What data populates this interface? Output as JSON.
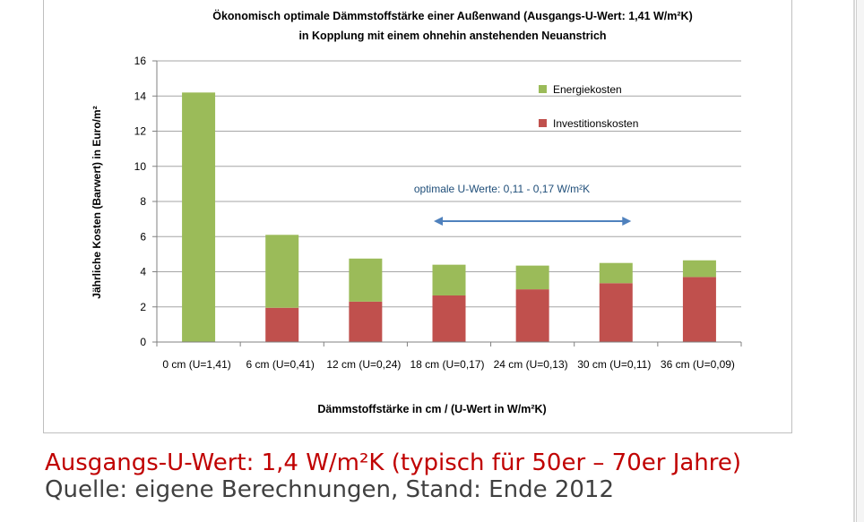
{
  "chart_data": {
    "type": "bar",
    "stacked": true,
    "title": "Ökonomisch optimale Dämmstoffstärke  einer Außenwand (Ausgangs-U-Wert: 1,41 W/m²K)",
    "subtitle": "in Kopplung mit einem ohnehin anstehenden Neuanstrich",
    "xlabel": "Dämmstoffstärke in cm / (U-Wert in W/m²K)",
    "ylabel": "Jährliche Kosten (Barwert) in Euro/m²",
    "ylim": [
      0,
      16
    ],
    "yticks": [
      0,
      2,
      4,
      6,
      8,
      10,
      12,
      14,
      16
    ],
    "grid": true,
    "legend_position": "top-right",
    "categories": [
      "0 cm (U=1,41)",
      "6 cm (U=0,41)",
      "12 cm (U=0,24)",
      "18 cm (U=0,17)",
      "24 cm (U=0,13)",
      "30 cm (U=0,11)",
      "36 cm (U=0,09)"
    ],
    "series": [
      {
        "name": "Investitionskosten",
        "color": "#c0504d",
        "values": [
          0,
          1.95,
          2.3,
          2.65,
          3.0,
          3.35,
          3.7
        ]
      },
      {
        "name": "Energiekosten",
        "color": "#9bbb59",
        "values": [
          14.2,
          4.15,
          2.45,
          1.75,
          1.35,
          1.15,
          0.95
        ]
      }
    ],
    "legend_order": [
      "Energiekosten",
      "Investitionskosten"
    ],
    "annotation": {
      "text": "optimale U-Werte: 0,11 - 0,17 W/m²K",
      "color": "#1f4e79",
      "arrow_color": "#4f81bd",
      "from_category": "18 cm (U=0,17)",
      "to_category": "30 cm (U=0,11)"
    }
  },
  "caption": {
    "line1": "Ausgangs-U-Wert: 1,4 W/m²K (typisch für 50er – 70er Jahre)",
    "line2": "Quelle: eigene Berechnungen, Stand: Ende 2012"
  }
}
